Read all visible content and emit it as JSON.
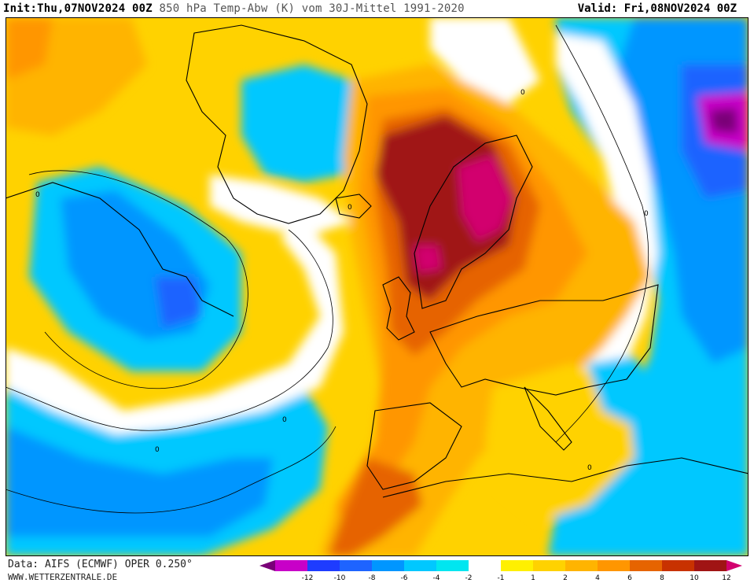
{
  "header": {
    "init_label": "Init:",
    "init_value": "Thu,07NOV2024 00Z",
    "title": "850 hPa Temp-Abw (K) vom 30J-Mittel 1991-2020",
    "valid_label": "Valid:",
    "valid_value": "Fri,08NOV2024 00Z"
  },
  "footer": {
    "data_source": "Data: AIFS (ECMWF) OPER 0.250°",
    "website": "WWW.WETTERZENTRALE.DE"
  },
  "legend": {
    "ticks": [
      "-12",
      "-10",
      "-8",
      "-6",
      "-4",
      "-2",
      "-1",
      "1",
      "2",
      "4",
      "6",
      "8",
      "10",
      "12"
    ],
    "colors": [
      "#7a0078",
      "#c800c8",
      "#1e3cff",
      "#1e64ff",
      "#0096ff",
      "#00c8ff",
      "#00e6f0",
      "#ffffff",
      "#fff000",
      "#ffd200",
      "#ffb400",
      "#ff9600",
      "#e66400",
      "#c83200",
      "#a01414",
      "#d2006e"
    ]
  },
  "map_labels": [
    "0",
    "0",
    "0",
    "0",
    "0",
    "0",
    "0"
  ]
}
